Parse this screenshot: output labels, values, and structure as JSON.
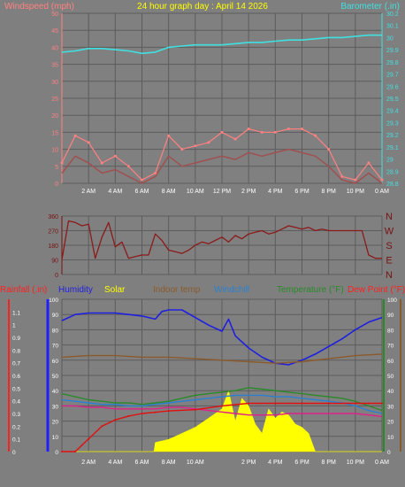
{
  "chart_data": [
    {
      "type": "line",
      "title": "24 hour graph day : April 14 2026",
      "ylabel_left": "Windspeed (mph)",
      "ylabel_right": "Barometer (.in)",
      "x_ticks": [
        "2 AM",
        "4 AM",
        "6 AM",
        "8 AM",
        "10 AM",
        "12 PM",
        "2 PM",
        "4 PM",
        "6 PM",
        "8 PM",
        "10 PM",
        "0 AM"
      ],
      "ylim_left": [
        0,
        50
      ],
      "y_ticks_left": [
        "0",
        "5",
        "10",
        "15",
        "20",
        "25",
        "30",
        "35",
        "40",
        "45",
        "50"
      ],
      "ylim_right": [
        28.8,
        30.2
      ],
      "y_ticks_right": [
        "28.8",
        "28.9",
        "29",
        "29.1",
        "29.2",
        "29.3",
        "29.4",
        "29.5",
        "29.6",
        "29.7",
        "29.8",
        "29.9",
        "30",
        "30.1",
        "30.2"
      ],
      "series": [
        {
          "name": "Windspeed (mph)",
          "color": "#ff8080",
          "x": [
            0,
            1,
            2,
            3,
            4,
            5,
            6,
            7,
            8,
            9,
            10,
            11,
            12,
            13,
            14,
            15,
            16,
            17,
            18,
            19,
            20,
            21,
            22,
            23,
            24
          ],
          "values": [
            6,
            14,
            12,
            6,
            8,
            5,
            1,
            3,
            14,
            10,
            11,
            12,
            15,
            13,
            16,
            15,
            15,
            16,
            16,
            14,
            10,
            2,
            1,
            6,
            1
          ]
        },
        {
          "name": "Wind Gust",
          "color": "#a05050",
          "x": [
            0,
            1,
            2,
            3,
            4,
            5,
            6,
            7,
            8,
            9,
            10,
            11,
            12,
            13,
            14,
            15,
            16,
            17,
            18,
            19,
            20,
            21,
            22,
            23,
            24
          ],
          "values": [
            3,
            8,
            6,
            3,
            4,
            2,
            0,
            2,
            8,
            5,
            6,
            7,
            8,
            7,
            9,
            8,
            9,
            10,
            9,
            8,
            5,
            1,
            0,
            3,
            0
          ]
        },
        {
          "name": "Barometer (.in)",
          "color": "#40e0e0",
          "axis": "right",
          "x": [
            0,
            1,
            2,
            3,
            4,
            5,
            6,
            7,
            8,
            9,
            10,
            11,
            12,
            13,
            14,
            15,
            16,
            17,
            18,
            19,
            20,
            21,
            22,
            23,
            24
          ],
          "values": [
            29.88,
            29.89,
            29.91,
            29.91,
            29.9,
            29.89,
            29.87,
            29.88,
            29.92,
            29.93,
            29.94,
            29.94,
            29.94,
            29.95,
            29.96,
            29.96,
            29.97,
            29.98,
            29.98,
            29.99,
            30.0,
            30.0,
            30.01,
            30.02,
            30.02
          ]
        }
      ]
    },
    {
      "type": "scatter",
      "series_name": "Wind direction",
      "ylim": [
        0,
        360
      ],
      "y_ticks": [
        "0",
        "90",
        "180",
        "270",
        "360"
      ],
      "compass": [
        "N",
        "W",
        "S",
        "E",
        "N"
      ],
      "color": "#8b1a1a",
      "x": [
        0,
        0.5,
        1,
        1.5,
        2,
        2.5,
        3,
        3.5,
        4,
        4.5,
        5,
        5.5,
        6,
        6.5,
        7,
        7.5,
        8,
        8.5,
        9,
        9.5,
        10,
        10.5,
        11,
        11.5,
        12,
        12.5,
        13,
        13.5,
        14,
        14.5,
        15,
        15.5,
        16,
        16.5,
        17,
        17.5,
        18,
        18.5,
        19,
        19.5,
        20,
        20.5,
        21,
        21.5,
        22,
        22.5,
        23,
        23.5,
        24
      ],
      "values": [
        90,
        330,
        320,
        300,
        310,
        100,
        230,
        320,
        170,
        200,
        100,
        110,
        120,
        120,
        250,
        210,
        150,
        140,
        130,
        150,
        180,
        200,
        190,
        210,
        230,
        200,
        240,
        220,
        250,
        260,
        270,
        250,
        260,
        280,
        300,
        290,
        280,
        290,
        270,
        280,
        270,
        270,
        270,
        270,
        270,
        270,
        120,
        100,
        100
      ]
    },
    {
      "type": "line",
      "legend": [
        "Rainfall (.in)",
        "Humidity",
        "Solar",
        "Indoor temp",
        "Windchill",
        "Temperature (°F)",
        "Dew Point (°F)"
      ],
      "x_ticks": [
        "2 AM",
        "4 AM",
        "6 AM",
        "8 AM",
        "10 AM",
        "2 PM",
        "4 PM",
        "6 PM",
        "8 PM",
        "10 PM",
        "0 AM"
      ],
      "ylim_rain": [
        0,
        1.2
      ],
      "y_ticks_rain": [
        "0",
        "0.1",
        "0.2",
        "0.3",
        "0.4",
        "0.5",
        "0.6",
        "0.7",
        "0.8",
        "0.9",
        "1",
        "1.1"
      ],
      "ylim_pct": [
        0,
        100
      ],
      "y_ticks_pct": [
        "0",
        "10",
        "20",
        "30",
        "40",
        "50",
        "60",
        "70",
        "80",
        "90",
        "100"
      ],
      "ylim_temp": [
        0,
        100
      ],
      "y_ticks_temp": [
        "0",
        "10",
        "20",
        "30",
        "40",
        "50",
        "60",
        "70",
        "80",
        "90",
        "100"
      ],
      "series": [
        {
          "name": "Humidity",
          "color": "#1f1fe0",
          "x": [
            0,
            1,
            2,
            3,
            4,
            5,
            6,
            7,
            7.5,
            8,
            9,
            10,
            11,
            12,
            12.5,
            13,
            14,
            15,
            16,
            17,
            18,
            19,
            20,
            21,
            22,
            23,
            24
          ],
          "values": [
            86,
            90,
            91,
            91,
            91,
            90,
            89,
            87,
            92,
            93,
            93,
            88,
            83,
            79,
            87,
            76,
            68,
            62,
            58,
            57,
            60,
            64,
            69,
            74,
            80,
            85,
            88
          ]
        },
        {
          "name": "Indoor temp",
          "color": "#8b5a2b",
          "x": [
            0,
            2,
            4,
            6,
            8,
            10,
            12,
            14,
            16,
            18,
            20,
            22,
            24
          ],
          "values": [
            62,
            63,
            63,
            62,
            62,
            61,
            60,
            59,
            58,
            59,
            61,
            63,
            64
          ]
        },
        {
          "name": "Windchill",
          "color": "#2a80d0",
          "x": [
            0,
            1,
            2,
            3,
            4,
            5,
            6,
            7,
            8,
            9,
            10,
            11,
            12,
            13,
            14,
            15,
            16,
            17,
            18,
            19,
            20,
            21,
            22,
            23,
            24
          ],
          "values": [
            34,
            33,
            32,
            31,
            31,
            30,
            30,
            31,
            32,
            33,
            34,
            35,
            36,
            37,
            37,
            37,
            36,
            36,
            35,
            34,
            33,
            32,
            30,
            27,
            25
          ]
        },
        {
          "name": "Temperature (°F)",
          "color": "#2a8a2a",
          "x": [
            0,
            1,
            2,
            3,
            4,
            5,
            6,
            7,
            8,
            9,
            10,
            11,
            12,
            13,
            14,
            15,
            16,
            17,
            18,
            19,
            20,
            21,
            22,
            23,
            24
          ],
          "values": [
            38,
            36,
            34,
            33,
            32,
            32,
            31,
            32,
            33,
            35,
            37,
            38,
            39,
            40,
            42,
            41,
            40,
            39,
            38,
            37,
            36,
            35,
            33,
            30,
            27
          ]
        },
        {
          "name": "Dew Point (°F)",
          "color": "#e0208a",
          "x": [
            0,
            1,
            2,
            3,
            4,
            5,
            6,
            7,
            8,
            9,
            10,
            11,
            12,
            13,
            14,
            15,
            16,
            17,
            18,
            19,
            20,
            21,
            22,
            23,
            24
          ],
          "values": [
            30,
            30,
            29,
            29,
            28,
            28,
            28,
            28,
            29,
            29,
            28,
            27,
            26,
            25,
            24,
            24,
            24,
            25,
            25,
            25,
            25,
            25,
            25,
            24,
            23
          ]
        },
        {
          "name": "Rainfall (.in)",
          "color": "#e01010",
          "axis": "rain",
          "x": [
            0,
            1,
            1.5,
            2,
            3,
            4,
            5,
            6,
            7,
            8,
            10,
            12,
            14,
            16,
            18,
            20,
            22,
            23,
            24
          ],
          "values": [
            0,
            0,
            0.05,
            0.1,
            0.2,
            0.25,
            0.28,
            0.3,
            0.31,
            0.32,
            0.33,
            0.36,
            0.38,
            0.38,
            0.38,
            0.38,
            0.38,
            0.38,
            0.38
          ]
        },
        {
          "name": "Solar",
          "color": "#ffff00",
          "x": [
            0,
            6.9,
            7,
            8,
            9,
            10,
            11,
            12,
            12.5,
            13,
            13.5,
            14,
            14.5,
            15,
            15.5,
            16,
            16.5,
            17,
            17.5,
            18,
            18.5,
            19,
            24
          ],
          "values": [
            0,
            0,
            6,
            8,
            12,
            16,
            22,
            28,
            40,
            20,
            35,
            30,
            18,
            12,
            28,
            22,
            26,
            24,
            18,
            16,
            12,
            0,
            0
          ]
        }
      ]
    }
  ]
}
